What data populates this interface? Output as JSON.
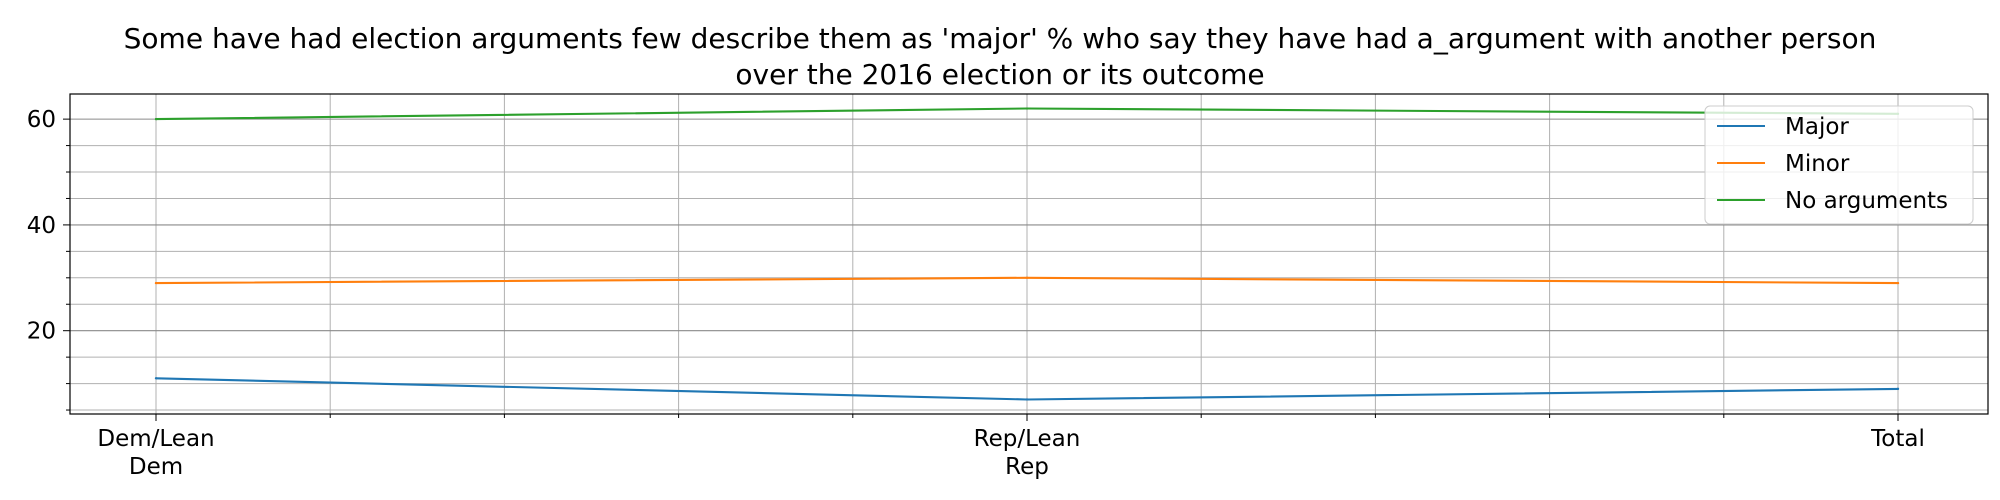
{
  "chart_data": {
    "type": "line",
    "title": "Some have had election arguments few describe them as 'major' % who say they have had a_argument with another person over the 2016 election or its outcome",
    "title_lines": [
      "Some have had election arguments few describe them as 'major' % who say they have had a_argument with another person",
      "over the 2016 election or its outcome"
    ],
    "categories": [
      "Dem/Lean Dem",
      "Rep/Lean Rep",
      "Total"
    ],
    "category_tick_lines": [
      [
        "Dem/Lean",
        "Dem"
      ],
      [
        "Rep/Lean",
        "Rep"
      ],
      [
        "Total"
      ]
    ],
    "series": [
      {
        "name": "Major",
        "values": [
          11,
          7,
          9
        ],
        "color": "#1f77b4"
      },
      {
        "name": "Minor",
        "values": [
          29,
          30,
          29
        ],
        "color": "#ff7f0e"
      },
      {
        "name": "No arguments",
        "values": [
          60,
          62,
          61
        ],
        "color": "#2ca02c"
      }
    ],
    "xlabel": "",
    "ylabel": "",
    "ylim": [
      4.25,
      64.75
    ],
    "y_major_ticks": [
      20,
      40,
      60
    ],
    "y_minor_ticks": [
      5,
      10,
      15,
      25,
      30,
      35,
      45,
      50,
      55
    ],
    "x_minor_divisions": 10,
    "grid": true,
    "legend_position": "top-right"
  }
}
